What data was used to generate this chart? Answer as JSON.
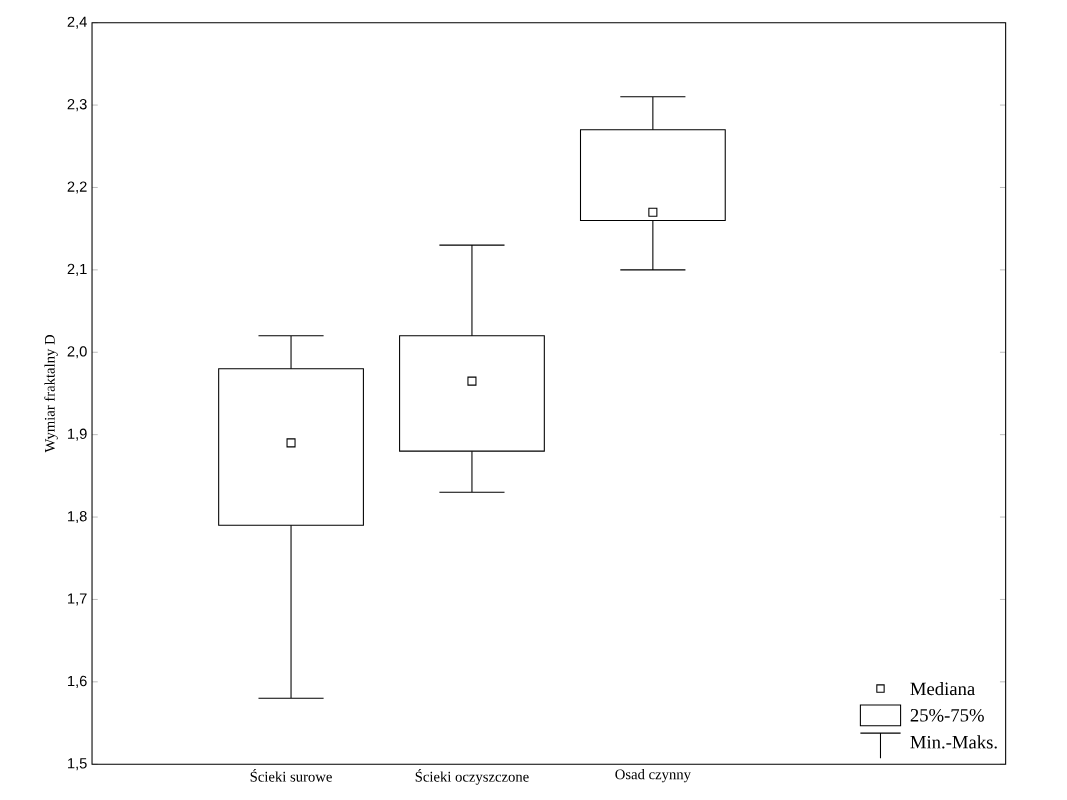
{
  "chart_data": {
    "type": "box",
    "ylabel": "Wymiar fraktalny D",
    "categories": [
      "Ścieki surowe",
      "Ścieki oczyszczone",
      "Osad czynny"
    ],
    "boxes": [
      {
        "low": 1.58,
        "q1": 1.79,
        "median": 1.89,
        "q3": 1.98,
        "high": 2.02
      },
      {
        "low": 1.83,
        "q1": 1.88,
        "median": 1.965,
        "q3": 2.02,
        "high": 2.13
      },
      {
        "low": 2.1,
        "q1": 2.16,
        "median": 2.17,
        "q3": 2.27,
        "high": 2.31
      }
    ],
    "ylim": [
      1.5,
      2.4
    ],
    "yticks": [
      {
        "value": 1.5,
        "label": "1,5"
      },
      {
        "value": 1.6,
        "label": "1,6"
      },
      {
        "value": 1.7,
        "label": "1,7"
      },
      {
        "value": 1.8,
        "label": "1,8"
      },
      {
        "value": 1.9,
        "label": "1,9"
      },
      {
        "value": 2.0,
        "label": "2,0"
      },
      {
        "value": 2.1,
        "label": "2,1"
      },
      {
        "value": 2.2,
        "label": "2,2"
      },
      {
        "value": 2.3,
        "label": "2,3"
      },
      {
        "value": 2.4,
        "label": "2,4"
      }
    ],
    "marker": "square",
    "annotations": [
      "Mediana",
      "25%-75%",
      "Min.-Maks."
    ]
  }
}
